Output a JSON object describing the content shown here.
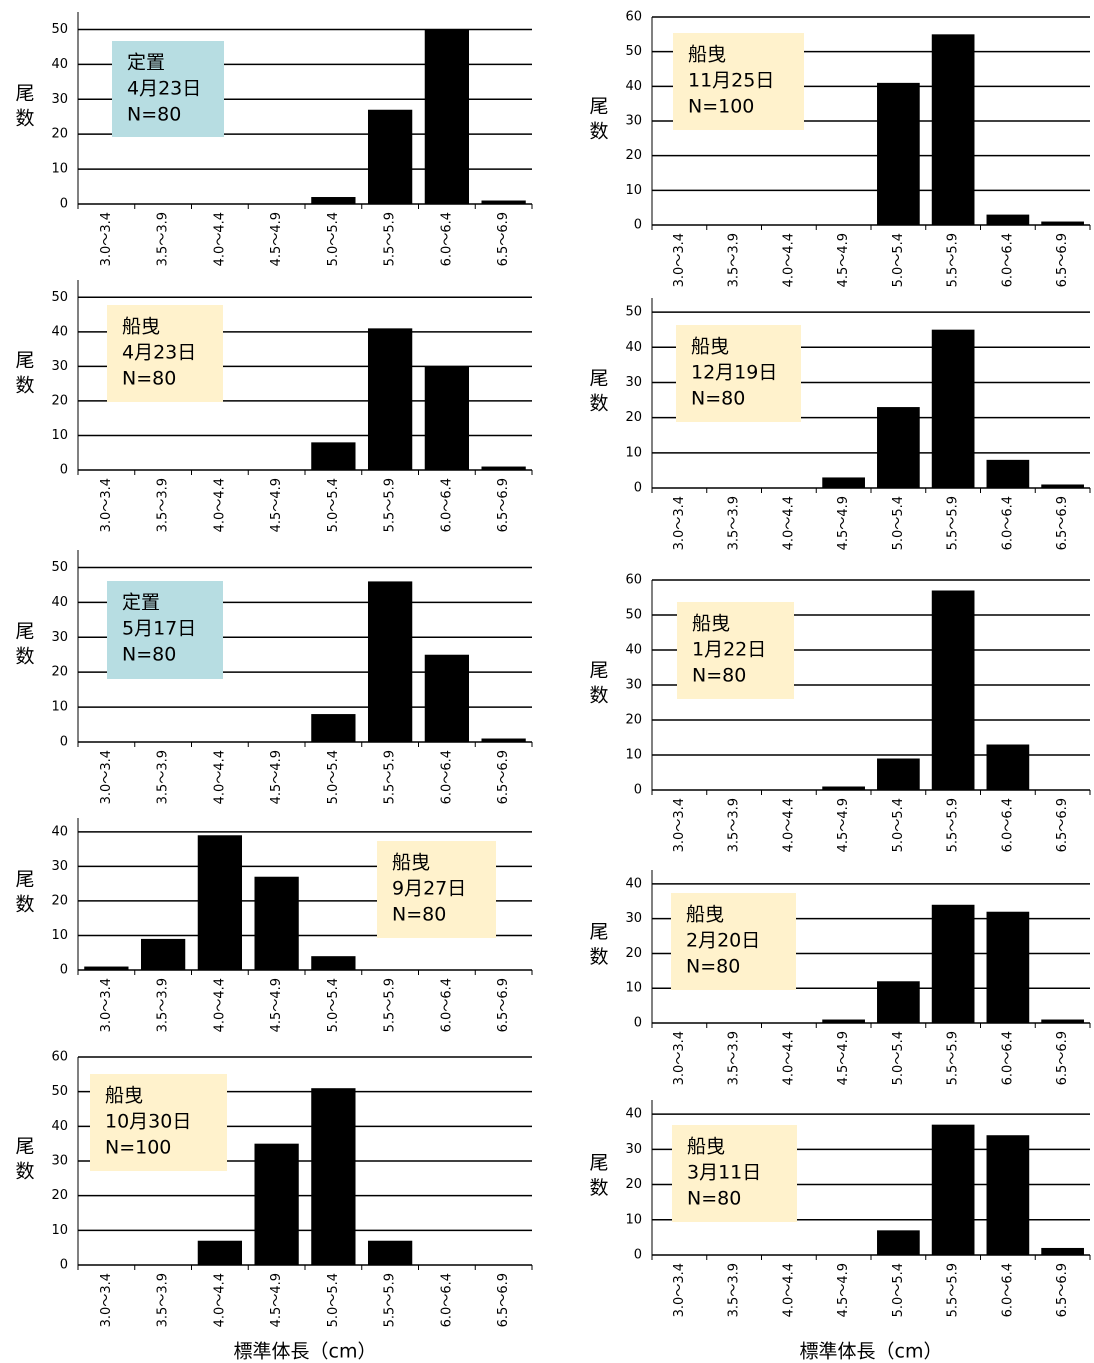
{
  "chart_data": [
    {
      "type": "bar",
      "ylabel": "尾数",
      "annotation": [
        "定置",
        "4月23日",
        "N=80"
      ],
      "annotation_color": "#b7dde2",
      "color": "#000000",
      "grid": true,
      "categories": [
        "3.0～3.4",
        "3.5～3.9",
        "4.0～4.4",
        "4.5～4.9",
        "5.0～5.4",
        "5.5～5.9",
        "6.0～6.4",
        "6.5～6.9"
      ],
      "values": [
        0,
        0,
        0,
        0,
        2,
        27,
        50,
        1
      ],
      "ylim": [
        0,
        55
      ],
      "yticks": [
        0,
        10,
        20,
        30,
        40,
        50
      ]
    },
    {
      "type": "bar",
      "ylabel": "尾数",
      "annotation": [
        "船曳",
        "4月23日",
        "N=80"
      ],
      "annotation_color": "#fff2cc",
      "color": "#000000",
      "grid": true,
      "categories": [
        "3.0～3.4",
        "3.5～3.9",
        "4.0～4.4",
        "4.5～4.9",
        "5.0～5.4",
        "5.5～5.9",
        "6.0～6.4",
        "6.5～6.9"
      ],
      "values": [
        0,
        0,
        0,
        0,
        8,
        41,
        30,
        1
      ],
      "ylim": [
        0,
        55
      ],
      "yticks": [
        0,
        10,
        20,
        30,
        40,
        50
      ]
    },
    {
      "type": "bar",
      "ylabel": "尾数",
      "annotation": [
        "定置",
        "5月17日",
        "N=80"
      ],
      "annotation_color": "#b7dde2",
      "color": "#000000",
      "grid": true,
      "categories": [
        "3.0～3.4",
        "3.5～3.9",
        "4.0～4.4",
        "4.5～4.9",
        "5.0～5.4",
        "5.5～5.9",
        "6.0～6.4",
        "6.5～6.9"
      ],
      "values": [
        0,
        0,
        0,
        0,
        8,
        46,
        25,
        1
      ],
      "ylim": [
        0,
        55
      ],
      "yticks": [
        0,
        10,
        20,
        30,
        40,
        50
      ]
    },
    {
      "type": "bar",
      "ylabel": "尾数",
      "annotation": [
        "船曳",
        "9月27日",
        "N=80"
      ],
      "annotation_color": "#fff2cc",
      "color": "#000000",
      "grid": true,
      "categories": [
        "3.0～3.4",
        "3.5～3.9",
        "4.0～4.4",
        "4.5～4.9",
        "5.0～5.4",
        "5.5～5.9",
        "6.0～6.4",
        "6.5～6.9"
      ],
      "values": [
        1,
        9,
        39,
        27,
        4,
        0,
        0,
        0
      ],
      "ylim": [
        0,
        44
      ],
      "yticks": [
        0,
        10,
        20,
        30,
        40
      ]
    },
    {
      "type": "bar",
      "ylabel": "尾数",
      "xlabel": "標準体長（cm）",
      "annotation": [
        "船曳",
        "10月30日",
        "N=100"
      ],
      "annotation_color": "#fff2cc",
      "color": "#000000",
      "grid": true,
      "categories": [
        "3.0～3.4",
        "3.5～3.9",
        "4.0～4.4",
        "4.5～4.9",
        "5.0～5.4",
        "5.5～5.9",
        "6.0～6.4",
        "6.5～6.9"
      ],
      "values": [
        0,
        0,
        7,
        35,
        51,
        7,
        0,
        0
      ],
      "ylim": [
        0,
        60
      ],
      "yticks": [
        0,
        10,
        20,
        30,
        40,
        50,
        60
      ]
    },
    {
      "type": "bar",
      "ylabel": "尾数",
      "annotation": [
        "船曳",
        "11月25日",
        "N=100"
      ],
      "annotation_color": "#fff2cc",
      "color": "#000000",
      "grid": true,
      "categories": [
        "3.0～3.4",
        "3.5～3.9",
        "4.0～4.4",
        "4.5～4.9",
        "5.0～5.4",
        "5.5～5.9",
        "6.0～6.4",
        "6.5～6.9"
      ],
      "values": [
        0,
        0,
        0,
        0,
        41,
        55,
        3,
        1
      ],
      "ylim": [
        0,
        60
      ],
      "yticks": [
        0,
        10,
        20,
        30,
        40,
        50,
        60
      ]
    },
    {
      "type": "bar",
      "ylabel": "尾数",
      "annotation": [
        "船曳",
        "12月19日",
        "N=80"
      ],
      "annotation_color": "#fff2cc",
      "color": "#000000",
      "grid": true,
      "categories": [
        "3.0～3.4",
        "3.5～3.9",
        "4.0～4.4",
        "4.5～4.9",
        "5.0～5.4",
        "5.5～5.9",
        "6.0～6.4",
        "6.5～6.9"
      ],
      "values": [
        0,
        0,
        0,
        3,
        23,
        45,
        8,
        1
      ],
      "ylim": [
        0,
        54
      ],
      "yticks": [
        0,
        10,
        20,
        30,
        40,
        50
      ]
    },
    {
      "type": "bar",
      "ylabel": "尾数",
      "annotation": [
        "船曳",
        "1月22日",
        "N=80"
      ],
      "annotation_color": "#fff2cc",
      "color": "#000000",
      "grid": true,
      "categories": [
        "3.0～3.4",
        "3.5～3.9",
        "4.0～4.4",
        "4.5～4.9",
        "5.0～5.4",
        "5.5～5.9",
        "6.0～6.4",
        "6.5～6.9"
      ],
      "values": [
        0,
        0,
        0,
        1,
        9,
        57,
        13,
        0
      ],
      "ylim": [
        0,
        60
      ],
      "yticks": [
        0,
        10,
        20,
        30,
        40,
        50,
        60
      ]
    },
    {
      "type": "bar",
      "ylabel": "尾数",
      "annotation": [
        "船曳",
        "2月20日",
        "N=80"
      ],
      "annotation_color": "#fff2cc",
      "color": "#000000",
      "grid": true,
      "categories": [
        "3.0～3.4",
        "3.5～3.9",
        "4.0～4.4",
        "4.5～4.9",
        "5.0～5.4",
        "5.5～5.9",
        "6.0～6.4",
        "6.5～6.9"
      ],
      "values": [
        0,
        0,
        0,
        1,
        12,
        34,
        32,
        1
      ],
      "ylim": [
        0,
        44
      ],
      "yticks": [
        0,
        10,
        20,
        30,
        40
      ]
    },
    {
      "type": "bar",
      "ylabel": "尾数",
      "xlabel": "標準体長（cm）",
      "annotation": [
        "船曳",
        "3月11日",
        "N=80"
      ],
      "annotation_color": "#fff2cc",
      "color": "#000000",
      "grid": true,
      "categories": [
        "3.0～3.4",
        "3.5～3.9",
        "4.0～4.4",
        "4.5～4.9",
        "5.0～5.4",
        "5.5～5.9",
        "6.0～6.4",
        "6.5～6.9"
      ],
      "values": [
        0,
        0,
        0,
        0,
        7,
        37,
        34,
        2
      ],
      "ylim": [
        0,
        44
      ],
      "yticks": [
        0,
        10,
        20,
        30,
        40
      ]
    }
  ]
}
